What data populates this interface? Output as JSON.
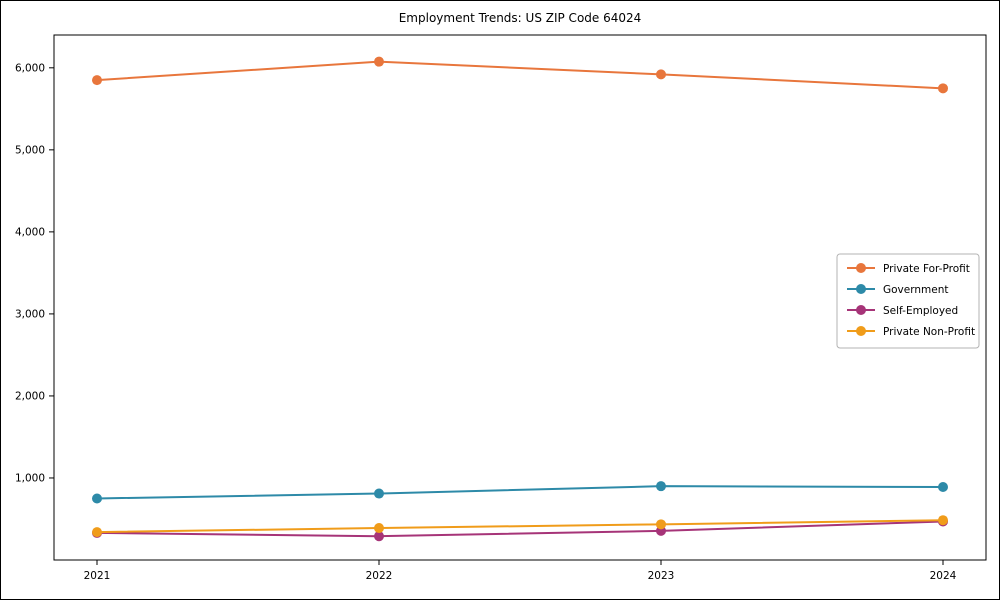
{
  "chart_data": {
    "type": "line",
    "title": "Employment Trends: US ZIP Code 64024",
    "categories": [
      "2021",
      "2022",
      "2023",
      "2024"
    ],
    "series": [
      {
        "name": "Private For-Profit",
        "color": "#e8763c",
        "values": [
          5850,
          6075,
          5920,
          5750
        ]
      },
      {
        "name": "Government",
        "color": "#2d8aa8",
        "values": [
          750,
          810,
          900,
          890
        ]
      },
      {
        "name": "Self-Employed",
        "color": "#a63478",
        "values": [
          330,
          290,
          355,
          470
        ]
      },
      {
        "name": "Private Non-Profit",
        "color": "#f09c1a",
        "values": [
          340,
          390,
          435,
          485
        ]
      }
    ],
    "xlabel": "",
    "ylabel": "",
    "ylim": [
      0,
      6400
    ],
    "yticks": [
      1000,
      2000,
      3000,
      4000,
      5000,
      6000
    ],
    "grid": false,
    "legend_position": "right",
    "marker": "circle",
    "axis_color": "#000000",
    "legend_border_color": "#b3b3b3",
    "legend_background": "#ffffff"
  }
}
